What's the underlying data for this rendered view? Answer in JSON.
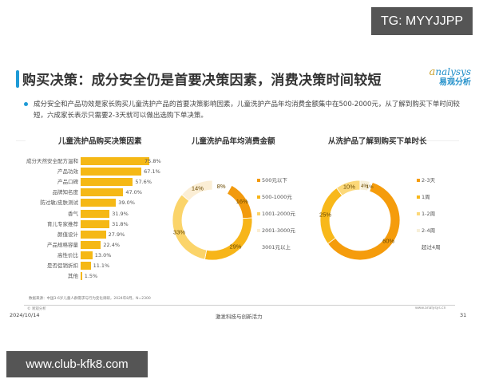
{
  "watermarks": {
    "top": "TG: MYYJJPP",
    "bottom": "www.club-kfk8.com"
  },
  "header": {
    "title": "购买决策：成分安全仍是首要决策因素，消费决策时间较短",
    "logo_en_a": "a",
    "logo_en_rest": "nalysys",
    "logo_cn": "易观分析",
    "accent_color": "#1e9ad6"
  },
  "summary": "成分安全和产品功效是家长购买儿童洗护产品的首要决策影响因素，儿童洗护产品年均消费金额集中在500-2000元，从了解到购买下单时间较短，六成家长表示只需要2-3天就可以做出选购下单决策。",
  "chart_data": [
    {
      "type": "bar",
      "orientation": "horizontal",
      "title": "儿童洗护品购买决策因素",
      "categories": [
        "成分天然安全配方温和",
        "产品功效",
        "产品口碑",
        "品牌知名度",
        "防过敏/皮肤测试",
        "香气",
        "育儿专家推荐",
        "颜值设计",
        "产品规格容量",
        "高性价比",
        "是否促销折扣",
        "其他"
      ],
      "values": [
        75.8,
        67.1,
        57.6,
        47.0,
        39.0,
        31.9,
        31.8,
        27.9,
        22.4,
        13.0,
        11.1,
        1.5
      ],
      "value_labels": [
        "75.8%",
        "67.1%",
        "57.6%",
        "47.0%",
        "39.0%",
        "31.9%",
        "31.8%",
        "27.9%",
        "22.4%",
        "13.0%",
        "11.1%",
        "1.5%"
      ],
      "unit": "%",
      "color": "#f5b815",
      "xlim": [
        0,
        100
      ],
      "grid": false
    },
    {
      "type": "pie",
      "donut": true,
      "title": "儿童洗护品年均消费金额",
      "categories": [
        "500元以下",
        "500-1000元",
        "1001-2000元",
        "2001-3000元",
        "3001元以上"
      ],
      "values": [
        16,
        29,
        33,
        14,
        8
      ],
      "value_labels": [
        "16%",
        "29%",
        "33%",
        "14%",
        "8%"
      ],
      "colors": [
        "#f29a0e",
        "#f7b519",
        "#fbd46a",
        "#fbeed5",
        "#ffffff"
      ],
      "legend_position": "right"
    },
    {
      "type": "pie",
      "donut": true,
      "title": "从洗护品了解到购买下单时长",
      "categories": [
        "2-3天",
        "1周",
        "1-2周",
        "2-4周",
        "超过4周"
      ],
      "values": [
        60,
        25,
        10,
        4,
        1
      ],
      "value_labels": [
        "60%",
        "25%",
        "10%",
        "4%",
        "1%"
      ],
      "colors": [
        "#f59c0c",
        "#f8b81a",
        "#fcd879",
        "#f7efd9",
        "#ffffff"
      ],
      "legend_position": "right"
    }
  ],
  "footer": {
    "source": "数据来源：中国3-6岁儿童人群需求与行为变化调研，2024年8月，N=2300",
    "copyright": "© 易观分析",
    "website": "www.analysys.cn",
    "date": "2024/10/14",
    "slogan": "激发科技与创新活力",
    "page": "31"
  }
}
